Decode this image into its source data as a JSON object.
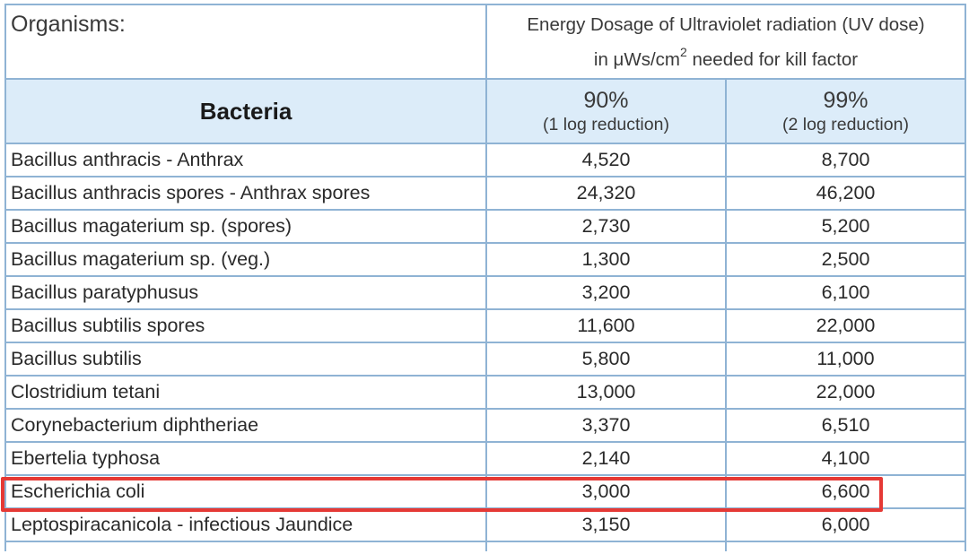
{
  "header": {
    "organisms_label": "Organisms:",
    "uv_line1": "Energy Dosage of Ultraviolet radiation (UV dose)",
    "uv_line2_prefix": "in μWs/cm",
    "uv_line2_sup": "2",
    "uv_line2_suffix": " needed for kill factor",
    "group_label": "Bacteria",
    "col90_value": "90%",
    "col90_note": "(1 log reduction)",
    "col99_value": "99%",
    "col99_note": "(2 log reduction)"
  },
  "rows": [
    {
      "name": "Bacillus anthracis - Anthrax",
      "v90": "4,520",
      "v99": "8,700"
    },
    {
      "name": "Bacillus anthracis spores - Anthrax spores",
      "v90": "24,320",
      "v99": "46,200"
    },
    {
      "name": "Bacillus magaterium sp. (spores)",
      "v90": "2,730",
      "v99": "5,200"
    },
    {
      "name": "Bacillus magaterium sp. (veg.)",
      "v90": "1,300",
      "v99": "2,500"
    },
    {
      "name": "Bacillus paratyphusus",
      "v90": "3,200",
      "v99": "6,100"
    },
    {
      "name": "Bacillus subtilis spores",
      "v90": "11,600",
      "v99": "22,000"
    },
    {
      "name": "Bacillus subtilis",
      "v90": "5,800",
      "v99": "11,000"
    },
    {
      "name": "Clostridium tetani",
      "v90": "13,000",
      "v99": "22,000"
    },
    {
      "name": "Corynebacterium diphtheriae",
      "v90": "3,370",
      "v99": "6,510"
    },
    {
      "name": "Ebertelia typhosa",
      "v90": "2,140",
      "v99": "4,100"
    },
    {
      "name": "Escherichia coli",
      "v90": "3,000",
      "v99": "6,600"
    },
    {
      "name": "Leptospiracanicola - infectious Jaundice",
      "v90": "3,150",
      "v99": "6,000"
    }
  ],
  "colors": {
    "border": "#8fb3d4",
    "header_fill": "#dcecf9",
    "highlight": "#e53935"
  }
}
